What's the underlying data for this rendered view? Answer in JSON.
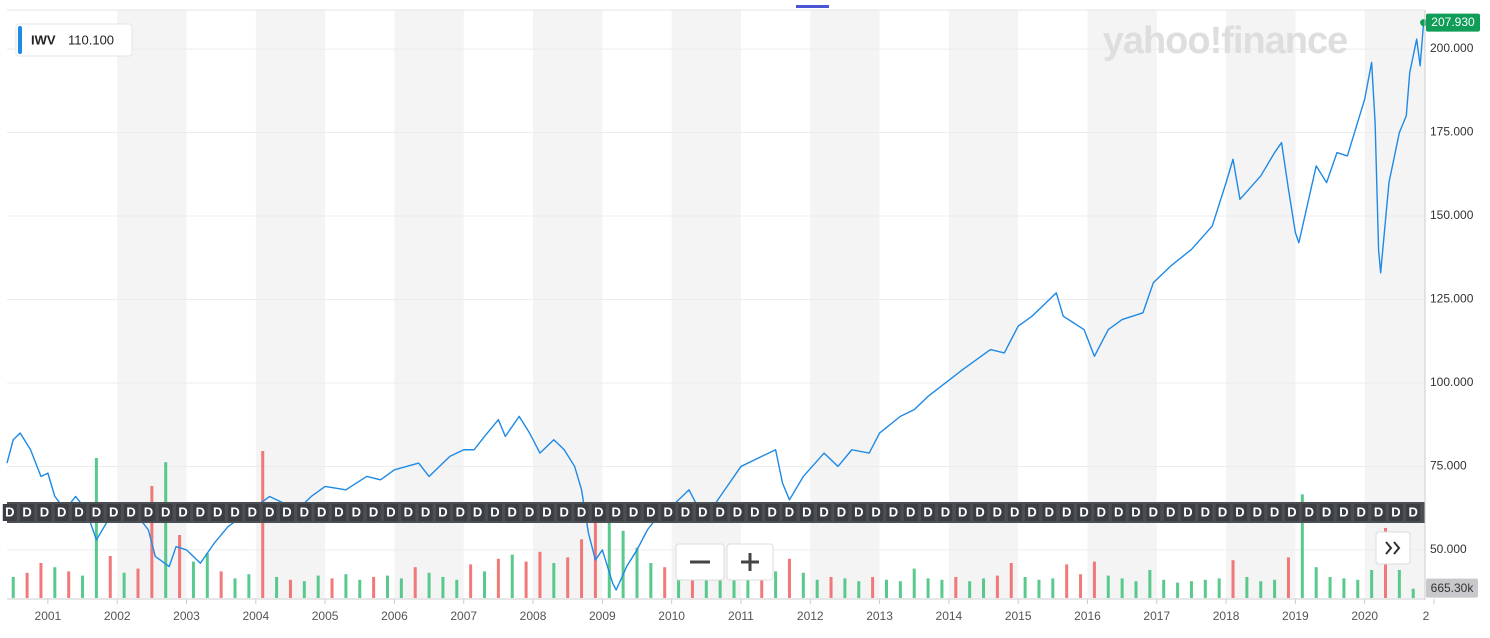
{
  "chart_data": {
    "type": "line",
    "watermark": "yahoo!finance",
    "series": [
      {
        "name": "IWV",
        "color": "#1e8ae6",
        "x": [
          2000.41,
          2000.5,
          2000.6,
          2000.75,
          2000.9,
          2001.0,
          2001.1,
          2001.25,
          2001.4,
          2001.55,
          2001.7,
          2001.9,
          2002.1,
          2002.3,
          2002.45,
          2002.55,
          2002.62,
          2002.75,
          2002.85,
          2003.0,
          2003.2,
          2003.4,
          2003.6,
          2003.8,
          2004.0,
          2004.2,
          2004.4,
          2004.6,
          2004.8,
          2005.0,
          2005.3,
          2005.6,
          2005.8,
          2006.0,
          2006.35,
          2006.5,
          2006.8,
          2007.0,
          2007.15,
          2007.3,
          2007.5,
          2007.6,
          2007.8,
          2007.95,
          2008.1,
          2008.3,
          2008.45,
          2008.6,
          2008.7,
          2008.8,
          2008.9,
          2009.0,
          2009.15,
          2009.2,
          2009.35,
          2009.5,
          2009.65,
          2009.8,
          2010.0,
          2010.25,
          2010.4,
          2010.6,
          2010.8,
          2011.0,
          2011.3,
          2011.5,
          2011.6,
          2011.7,
          2011.9,
          2012.2,
          2012.4,
          2012.6,
          2012.85,
          2013.0,
          2013.3,
          2013.5,
          2013.7,
          2013.95,
          2014.2,
          2014.4,
          2014.6,
          2014.8,
          2015.0,
          2015.2,
          2015.4,
          2015.55,
          2015.65,
          2015.8,
          2015.95,
          2016.1,
          2016.3,
          2016.5,
          2016.8,
          2016.95,
          2017.2,
          2017.5,
          2017.8,
          2018.0,
          2018.1,
          2018.2,
          2018.5,
          2018.7,
          2018.8,
          2018.9,
          2019.0,
          2019.05,
          2019.3,
          2019.45,
          2019.6,
          2019.75,
          2020.0,
          2020.1,
          2020.15,
          2020.2,
          2020.23,
          2020.35,
          2020.5,
          2020.6,
          2020.65,
          2020.7,
          2020.75,
          2020.8,
          2020.85
        ],
        "values": [
          76,
          83,
          85,
          80,
          72,
          73,
          66,
          62,
          66,
          62,
          53,
          60,
          62,
          60,
          56,
          48,
          47,
          45,
          51,
          50,
          46,
          52,
          57,
          60,
          63,
          66,
          64,
          62,
          66,
          69,
          68,
          72,
          71,
          74,
          76,
          72,
          78,
          80,
          80,
          84,
          89,
          84,
          90,
          85,
          79,
          83,
          80,
          75,
          68,
          55,
          47,
          50,
          40,
          38,
          45,
          50,
          56,
          60,
          63,
          68,
          62,
          63,
          69,
          75,
          78,
          80,
          70,
          65,
          72,
          79,
          75,
          80,
          79,
          85,
          90,
          92,
          96,
          100,
          104,
          107,
          110,
          109,
          117,
          120,
          124,
          127,
          120,
          118,
          116,
          108,
          116,
          119,
          121,
          130,
          135,
          140,
          147,
          160,
          167,
          155,
          162,
          169,
          172,
          158,
          145,
          142,
          165,
          160,
          169,
          168,
          185,
          196,
          178,
          140,
          133,
          160,
          175,
          180,
          193,
          198,
          203,
          195,
          207.93
        ]
      }
    ],
    "legend_value": {
      "value": 110.1,
      "label": "110.100"
    },
    "last_price": {
      "value": 207.93,
      "label": "207.930"
    },
    "last_price_color": "#0f9d58",
    "xlim": [
      2000.41,
      2020.87
    ],
    "xticks": [
      2001,
      2002,
      2003,
      2004,
      2005,
      2006,
      2007,
      2008,
      2009,
      2010,
      2011,
      2012,
      2013,
      2014,
      2015,
      2016,
      2017,
      2018,
      2019,
      2020,
      {
        "value": 2021,
        "label": "2"
      }
    ],
    "ylim": [
      35.6,
      211.7
    ],
    "yticks": [
      {
        "value": 50,
        "label": "50.000"
      },
      {
        "value": 75,
        "label": "75.000"
      },
      {
        "value": 100,
        "label": "100.000"
      },
      {
        "value": 125,
        "label": "125.000"
      },
      {
        "value": 150,
        "label": "150.000"
      },
      {
        "value": 175,
        "label": "175.000"
      },
      {
        "value": 200,
        "label": "200.000"
      }
    ],
    "grid": true,
    "y2lim": [
      0,
      42000
    ],
    "volume": {
      "axis": "y2",
      "up_color": "#3cc07a",
      "down_color": "#f06262",
      "x": [
        2000.5,
        2000.7,
        2000.9,
        2001.1,
        2001.3,
        2001.5,
        2001.7,
        2001.9,
        2002.1,
        2002.3,
        2002.5,
        2002.7,
        2002.9,
        2003.1,
        2003.3,
        2003.5,
        2003.7,
        2003.9,
        2004.1,
        2004.3,
        2004.5,
        2004.7,
        2004.9,
        2005.1,
        2005.3,
        2005.5,
        2005.7,
        2005.9,
        2006.1,
        2006.3,
        2006.5,
        2006.7,
        2006.9,
        2007.1,
        2007.3,
        2007.5,
        2007.7,
        2007.9,
        2008.1,
        2008.3,
        2008.5,
        2008.7,
        2008.9,
        2009.1,
        2009.3,
        2009.5,
        2009.7,
        2009.9,
        2010.1,
        2010.3,
        2010.5,
        2010.7,
        2010.9,
        2011.1,
        2011.3,
        2011.5,
        2011.7,
        2011.9,
        2012.1,
        2012.3,
        2012.5,
        2012.7,
        2012.9,
        2013.1,
        2013.3,
        2013.5,
        2013.7,
        2013.9,
        2014.1,
        2014.3,
        2014.5,
        2014.7,
        2014.9,
        2015.1,
        2015.3,
        2015.5,
        2015.7,
        2015.9,
        2016.1,
        2016.3,
        2016.5,
        2016.7,
        2016.9,
        2017.1,
        2017.3,
        2017.5,
        2017.7,
        2017.9,
        2018.1,
        2018.3,
        2018.5,
        2018.7,
        2018.9,
        2019.1,
        2019.3,
        2019.5,
        2019.7,
        2019.9,
        2020.1,
        2020.3,
        2020.5,
        2020.7
      ],
      "values": [
        1500,
        1800,
        2500,
        2200,
        1900,
        1600,
        10000,
        3000,
        1800,
        2100,
        8000,
        9700,
        4500,
        2600,
        3200,
        1900,
        1400,
        1700,
        10500,
        1500,
        1300,
        1200,
        1600,
        1400,
        1700,
        1300,
        1500,
        1600,
        1400,
        2200,
        1800,
        1500,
        1300,
        2400,
        1900,
        2800,
        3100,
        2600,
        3300,
        2500,
        2900,
        4200,
        6500,
        5800,
        4800,
        3600,
        2500,
        2200,
        2000,
        2800,
        2300,
        1700,
        1500,
        1400,
        1600,
        1900,
        2800,
        1800,
        1300,
        1500,
        1400,
        1200,
        1500,
        1300,
        1200,
        2100,
        1400,
        1300,
        1500,
        1200,
        1400,
        1600,
        2500,
        1500,
        1300,
        1400,
        2400,
        1700,
        2600,
        1600,
        1400,
        1200,
        2000,
        1300,
        1100,
        1200,
        1300,
        1400,
        2700,
        1500,
        1200,
        1300,
        2900,
        7400,
        2200,
        1500,
        1400,
        1300,
        2000,
        5000,
        2000,
        665.3
      ],
      "up": [
        true,
        false,
        false,
        true,
        false,
        true,
        true,
        false,
        true,
        false,
        false,
        true,
        false,
        true,
        true,
        false,
        true,
        true,
        false,
        true,
        false,
        true,
        true,
        false,
        true,
        true,
        false,
        true,
        true,
        false,
        true,
        true,
        true,
        false,
        true,
        false,
        true,
        false,
        false,
        true,
        false,
        false,
        false,
        true,
        true,
        true,
        true,
        false,
        true,
        false,
        true,
        true,
        true,
        true,
        false,
        true,
        false,
        true,
        true,
        false,
        true,
        true,
        false,
        true,
        true,
        true,
        true,
        true,
        false,
        true,
        true,
        false,
        false,
        true,
        true,
        true,
        false,
        false,
        false,
        true,
        true,
        true,
        true,
        true,
        true,
        true,
        true,
        true,
        false,
        true,
        true,
        true,
        false,
        true,
        true,
        true,
        true,
        true,
        true,
        false,
        true,
        true
      ]
    },
    "volume_last": {
      "value": 665.3,
      "label": "665.30k"
    },
    "dividends": {
      "label": "D",
      "x": [
        2000.45,
        2000.7,
        2000.95,
        2001.2,
        2001.45,
        2001.7,
        2001.95,
        2002.2,
        2002.45,
        2002.7,
        2002.95,
        2003.2,
        2003.45,
        2003.7,
        2003.95,
        2004.2,
        2004.45,
        2004.7,
        2004.95,
        2005.2,
        2005.45,
        2005.7,
        2005.95,
        2006.2,
        2006.45,
        2006.7,
        2006.95,
        2007.2,
        2007.45,
        2007.7,
        2007.95,
        2008.2,
        2008.45,
        2008.7,
        2008.95,
        2009.2,
        2009.45,
        2009.7,
        2009.95,
        2010.2,
        2010.45,
        2010.7,
        2010.95,
        2011.2,
        2011.45,
        2011.7,
        2011.95,
        2012.2,
        2012.45,
        2012.7,
        2012.95,
        2013.2,
        2013.45,
        2013.7,
        2013.95,
        2014.2,
        2014.45,
        2014.7,
        2014.95,
        2015.2,
        2015.45,
        2015.7,
        2015.95,
        2016.2,
        2016.45,
        2016.7,
        2016.95,
        2017.2,
        2017.45,
        2017.7,
        2017.95,
        2018.2,
        2018.45,
        2018.7,
        2018.95,
        2019.2,
        2019.45,
        2019.7,
        2019.95,
        2020.2,
        2020.45,
        2020.7
      ]
    }
  }
}
